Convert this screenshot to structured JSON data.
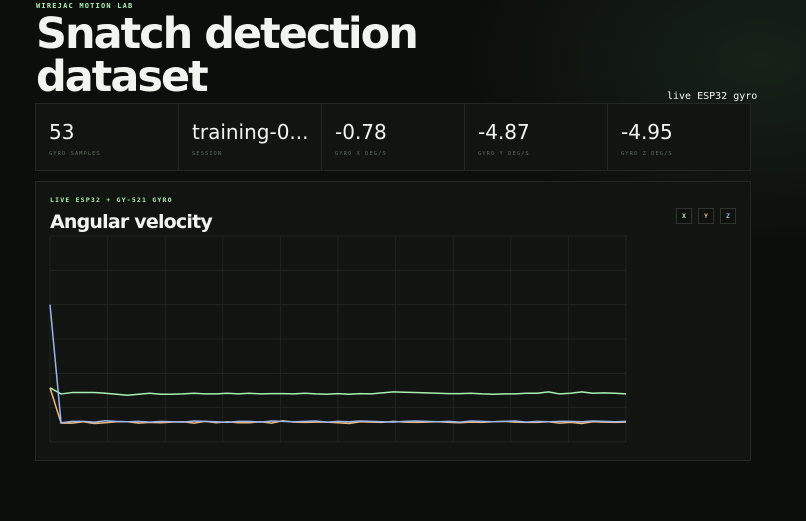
{
  "brand": "WIREJAC MOTION LAB",
  "page_title": "Snatch detection dataset",
  "live_tag": "live ESP32 gyro",
  "stats": [
    {
      "value": "53",
      "label": "GYRO SAMPLES"
    },
    {
      "value": "training-0...",
      "label": "SESSION"
    },
    {
      "value": "-0.78",
      "label": "GYRO X DEG/S"
    },
    {
      "value": "-4.87",
      "label": "GYRO Y DEG/S"
    },
    {
      "value": "-4.95",
      "label": "GYRO Z DEG/S"
    }
  ],
  "panel": {
    "eyebrow": "LIVE ESP32 + GY-521 GYRO",
    "title": "Angular velocity",
    "legend": [
      {
        "label": "X",
        "color": "#a8f0b0"
      },
      {
        "label": "Y",
        "color": "#f0b878"
      },
      {
        "label": "Z",
        "color": "#9cb4f0"
      }
    ]
  },
  "chart_data": {
    "type": "line",
    "grid": true,
    "ylim": [
      -10,
      50
    ],
    "x_range": [
      0,
      52
    ],
    "series": [
      {
        "name": "X",
        "color": "#a8f0b0",
        "values": [
          5.8,
          4.0,
          4.4,
          4.4,
          4.4,
          4.2,
          3.9,
          3.6,
          3.9,
          4.2,
          3.9,
          3.9,
          4.0,
          4.2,
          4.0,
          4.0,
          4.2,
          4.0,
          4.2,
          4.0,
          4.1,
          4.1,
          4.0,
          4.2,
          4.0,
          3.9,
          4.1,
          3.9,
          4.1,
          4.0,
          4.3,
          4.6,
          4.5,
          4.4,
          4.3,
          4.2,
          4.1,
          4.1,
          4.2,
          4.0,
          3.9,
          4.0,
          4.0,
          4.2,
          4.2,
          4.6,
          4.0,
          4.2,
          4.6,
          4.2,
          4.3,
          4.2,
          4.0
        ]
      },
      {
        "name": "Y",
        "color": "#f0b878",
        "values": [
          5.8,
          -4.5,
          -4.5,
          -4.1,
          -4.6,
          -4.4,
          -4.1,
          -4.1,
          -4.5,
          -4.3,
          -4.4,
          -4.2,
          -4.1,
          -4.5,
          -4.0,
          -4.4,
          -4.1,
          -4.4,
          -4.4,
          -4.1,
          -4.5,
          -3.8,
          -4.2,
          -4.3,
          -4.2,
          -4.2,
          -4.4,
          -4.6,
          -4.1,
          -4.2,
          -4.3,
          -4.0,
          -4.2,
          -4.3,
          -4.2,
          -4.1,
          -4.3,
          -4.4,
          -4.2,
          -4.3,
          -4.1,
          -4.0,
          -4.2,
          -4.3,
          -4.3,
          -4.1,
          -4.5,
          -4.3,
          -4.6,
          -4.1,
          -4.2,
          -4.3,
          -4.2
        ]
      },
      {
        "name": "Z",
        "color": "#9cb4f0",
        "values": [
          30.0,
          -4.4,
          -4.0,
          -4.0,
          -4.2,
          -3.8,
          -4.0,
          -4.1,
          -4.0,
          -4.2,
          -4.0,
          -4.1,
          -4.2,
          -3.9,
          -4.0,
          -4.1,
          -4.3,
          -4.0,
          -4.0,
          -4.2,
          -3.9,
          -4.0,
          -4.1,
          -4.0,
          -3.9,
          -4.2,
          -4.0,
          -4.1,
          -3.9,
          -4.0,
          -4.1,
          -4.2,
          -4.0,
          -3.9,
          -4.0,
          -4.1,
          -4.0,
          -4.2,
          -3.9,
          -4.0,
          -4.1,
          -4.0,
          -3.9,
          -4.2,
          -4.0,
          -4.1,
          -4.0,
          -4.0,
          -4.1,
          -3.9,
          -4.0,
          -4.1,
          -4.0
        ]
      }
    ]
  }
}
